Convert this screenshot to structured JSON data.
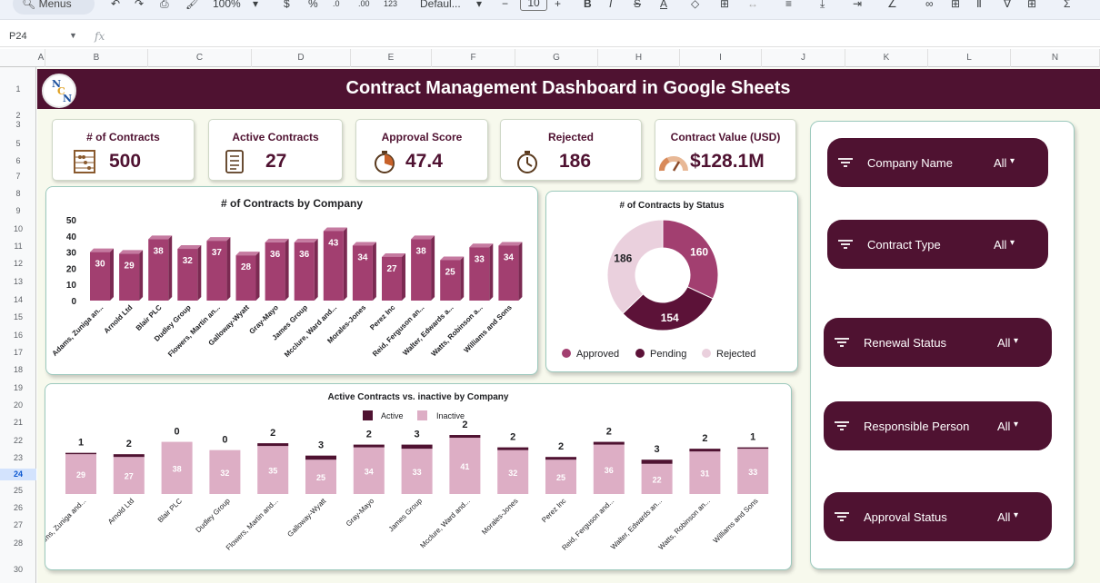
{
  "toolbar": {
    "menus_label": "Menus",
    "zoom": "100%",
    "currency": "$",
    "percent": "%",
    "dec_down": ".0",
    "dec_up": ".00",
    "num_format": "123",
    "font": "Defaul...",
    "font_size": "10"
  },
  "formula_bar": {
    "cell_ref": "P24",
    "fx": "fx"
  },
  "columns": [
    "A",
    "B",
    "C",
    "D",
    "E",
    "F",
    "G",
    "H",
    "I",
    "J",
    "K",
    "L",
    "N"
  ],
  "rows": [
    "1",
    "2",
    "3",
    "5",
    "6",
    "7",
    "8",
    "9",
    "10",
    "11",
    "12",
    "13",
    "14",
    "15",
    "16",
    "17",
    "18",
    "19",
    "20",
    "21",
    "22",
    "23",
    "24",
    "25",
    "26",
    "27",
    "28",
    "30"
  ],
  "selected_row": "24",
  "dashboard": {
    "title": "Contract Management Dashboard in Google Sheets",
    "logo_text": "NCN"
  },
  "kpis": [
    {
      "label": "# of Contracts",
      "value": "500",
      "icon": "abacus-icon"
    },
    {
      "label": "Active Contracts",
      "value": "27",
      "icon": "checklist-icon"
    },
    {
      "label": "Approval Score",
      "value": "47.4",
      "icon": "timer-icon"
    },
    {
      "label": "Rejected",
      "value": "186",
      "icon": "stopwatch-icon"
    },
    {
      "label": "Contract Value (USD)",
      "value": "$128.1M",
      "icon": "gauge-icon"
    }
  ],
  "colors": {
    "maroon": "#4f1231",
    "bar": "#a23f70",
    "bar_side": "#7b2a52",
    "pending": "#5c1238",
    "approved": "#a23f70",
    "rejected": "#ead0dd",
    "inactive": "#ddaec5",
    "active": "#4f1231",
    "background": "#f7f9ed"
  },
  "slicers": [
    {
      "name": "Company Name",
      "value": "All"
    },
    {
      "name": "Contract Type",
      "value": "All"
    },
    {
      "name": "Renewal Status",
      "value": "All"
    },
    {
      "name": "Responsible Person",
      "value": "All"
    },
    {
      "name": "Approval Status",
      "value": "All"
    }
  ],
  "chart_data": [
    {
      "type": "bar",
      "title": "# of Contracts by Company",
      "categories": [
        "Adams, Zuniga an...",
        "Arnold Ltd",
        "Blair PLC",
        "Dudley Group",
        "Flowers, Martin an...",
        "Galloway-Wyatt",
        "Gray-Mayo",
        "James Group",
        "Mcclure, Ward and...",
        "Morales-Jones",
        "Perez Inc",
        "Reid, Ferguson an...",
        "Walter, Edwards a...",
        "Watts, Robinson a...",
        "Williams and Sons"
      ],
      "values": [
        30,
        29,
        38,
        32,
        37,
        28,
        36,
        36,
        43,
        34,
        27,
        38,
        25,
        33,
        34
      ],
      "y_ticks": [
        "0",
        "10",
        "20",
        "30",
        "40",
        "50"
      ],
      "ylim": [
        0,
        50
      ]
    },
    {
      "type": "pie",
      "title": "# of Contracts by Status",
      "labels": [
        "Approved",
        "Pending",
        "Rejected"
      ],
      "values": [
        160,
        154,
        186
      ],
      "legend": "bottom"
    },
    {
      "type": "bar",
      "title": "Active Contracts vs. inactive by Company",
      "categories": [
        "Adams, Zuniga and...",
        "Arnold Ltd",
        "Blair PLC",
        "Dudley Group",
        "Flowers, Martin and...",
        "Galloway-Wyatt",
        "Gray-Mayo",
        "James Group",
        "Mcclure, Ward and...",
        "Morales-Jones",
        "Perez Inc",
        "Reid, Ferguson and...",
        "Walter, Edwards an...",
        "Watts, Robinson an...",
        "Williams and Sons"
      ],
      "series": [
        {
          "name": "Active",
          "values": [
            1,
            2,
            0,
            0,
            2,
            3,
            2,
            3,
            2,
            2,
            2,
            2,
            3,
            2,
            1
          ]
        },
        {
          "name": "Inactive",
          "values": [
            29,
            27,
            38,
            32,
            35,
            25,
            34,
            33,
            41,
            32,
            25,
            36,
            22,
            31,
            33
          ]
        }
      ],
      "legend": "top",
      "stacked": true
    }
  ]
}
